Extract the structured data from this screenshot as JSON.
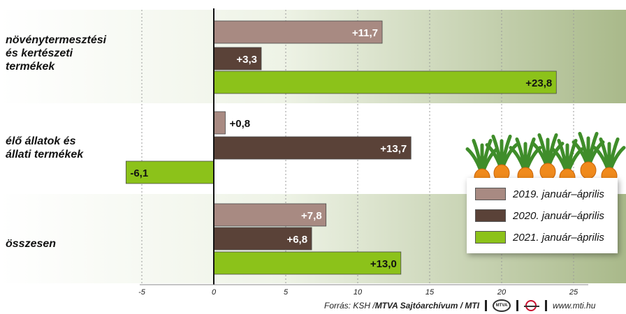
{
  "chart_data": {
    "type": "bar",
    "orientation": "horizontal",
    "categories": [
      "növénytermesztési\nés kertészeti\ntermékek",
      "élő állatok és\nállati termékek",
      "összesen"
    ],
    "series": [
      {
        "name": "2019. január–április",
        "values": [
          11.7,
          0.8,
          7.8
        ],
        "labels": [
          "+11,7",
          "+0,8",
          "+7,8"
        ],
        "color": "#a88a82"
      },
      {
        "name": "2020. január–április",
        "values": [
          3.3,
          13.7,
          6.8
        ],
        "labels": [
          "+3,3",
          "+13,7",
          "+6,8"
        ],
        "color": "#5a4238"
      },
      {
        "name": "2021. január–április",
        "values": [
          23.8,
          -6.1,
          13.0
        ],
        "labels": [
          "+23,8",
          "-6,1",
          "+13,0"
        ],
        "color": "#8cc21a"
      }
    ],
    "xticks": [
      "-5",
      "0",
      "5",
      "10",
      "15",
      "20",
      "25"
    ],
    "xtick_values": [
      -5,
      0,
      5,
      10,
      15,
      20,
      25
    ],
    "xlim": [
      -7.5,
      27.5
    ],
    "grid": true,
    "legend": "bottom-right"
  },
  "footer": {
    "source_prefix": "Forrás: KSH / ",
    "source_bold": "MTVA Sajtóarchívum / MTI",
    "logo_text": "MTVA",
    "url": "www.mti.hu"
  }
}
